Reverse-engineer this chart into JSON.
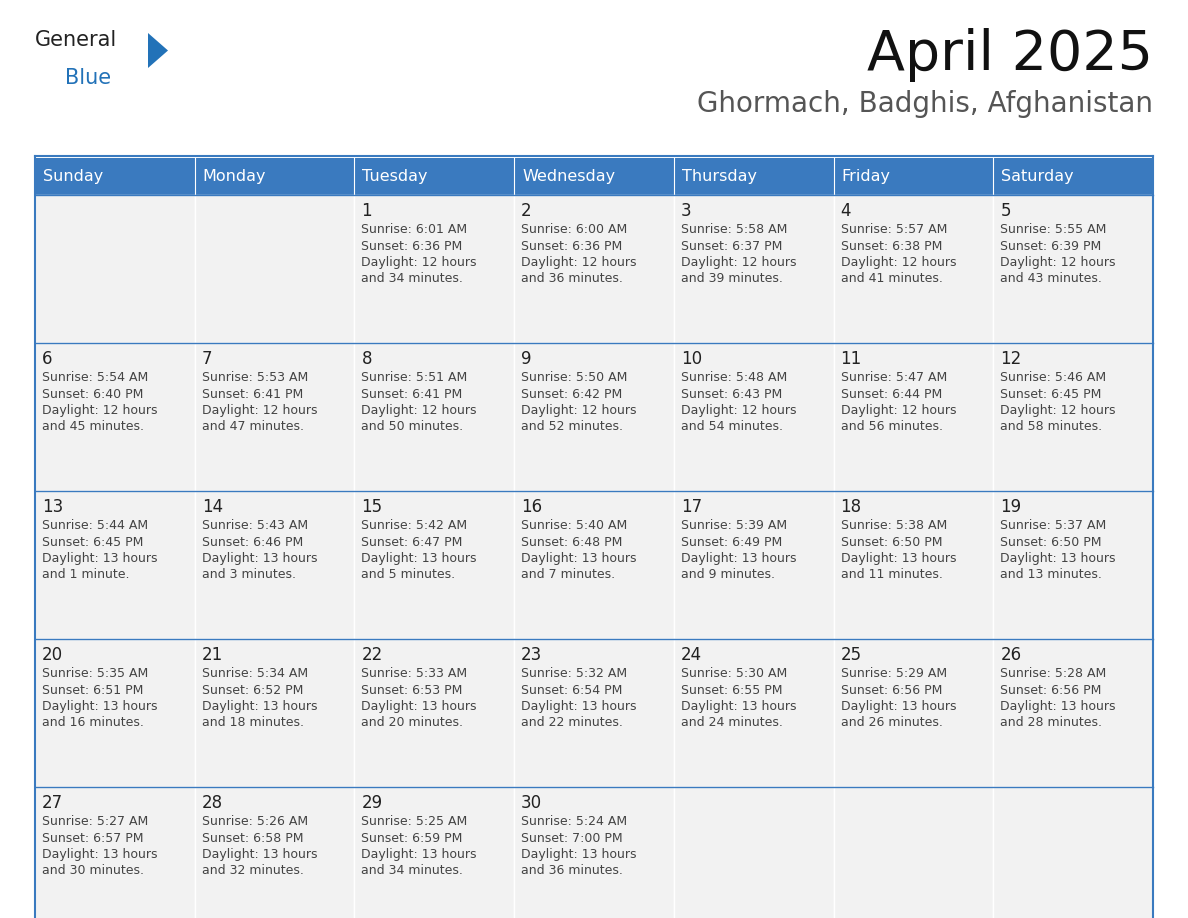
{
  "title": "April 2025",
  "subtitle": "Ghormach, Badghis, Afghanistan",
  "days_of_week": [
    "Sunday",
    "Monday",
    "Tuesday",
    "Wednesday",
    "Thursday",
    "Friday",
    "Saturday"
  ],
  "header_bg": "#3a7abf",
  "header_text": "#ffffff",
  "cell_bg": "#f2f2f2",
  "border_color": "#3a7abf",
  "cell_border_color": "#ffffff",
  "text_color": "#444444",
  "day_num_color": "#222222",
  "title_color": "#111111",
  "subtitle_color": "#555555",
  "logo_general_color": "#222222",
  "logo_blue_color": "#2272b8",
  "calendar_data": [
    [
      {
        "day": "",
        "info": ""
      },
      {
        "day": "",
        "info": ""
      },
      {
        "day": "1",
        "info": "Sunrise: 6:01 AM\nSunset: 6:36 PM\nDaylight: 12 hours\nand 34 minutes."
      },
      {
        "day": "2",
        "info": "Sunrise: 6:00 AM\nSunset: 6:36 PM\nDaylight: 12 hours\nand 36 minutes."
      },
      {
        "day": "3",
        "info": "Sunrise: 5:58 AM\nSunset: 6:37 PM\nDaylight: 12 hours\nand 39 minutes."
      },
      {
        "day": "4",
        "info": "Sunrise: 5:57 AM\nSunset: 6:38 PM\nDaylight: 12 hours\nand 41 minutes."
      },
      {
        "day": "5",
        "info": "Sunrise: 5:55 AM\nSunset: 6:39 PM\nDaylight: 12 hours\nand 43 minutes."
      }
    ],
    [
      {
        "day": "6",
        "info": "Sunrise: 5:54 AM\nSunset: 6:40 PM\nDaylight: 12 hours\nand 45 minutes."
      },
      {
        "day": "7",
        "info": "Sunrise: 5:53 AM\nSunset: 6:41 PM\nDaylight: 12 hours\nand 47 minutes."
      },
      {
        "day": "8",
        "info": "Sunrise: 5:51 AM\nSunset: 6:41 PM\nDaylight: 12 hours\nand 50 minutes."
      },
      {
        "day": "9",
        "info": "Sunrise: 5:50 AM\nSunset: 6:42 PM\nDaylight: 12 hours\nand 52 minutes."
      },
      {
        "day": "10",
        "info": "Sunrise: 5:48 AM\nSunset: 6:43 PM\nDaylight: 12 hours\nand 54 minutes."
      },
      {
        "day": "11",
        "info": "Sunrise: 5:47 AM\nSunset: 6:44 PM\nDaylight: 12 hours\nand 56 minutes."
      },
      {
        "day": "12",
        "info": "Sunrise: 5:46 AM\nSunset: 6:45 PM\nDaylight: 12 hours\nand 58 minutes."
      }
    ],
    [
      {
        "day": "13",
        "info": "Sunrise: 5:44 AM\nSunset: 6:45 PM\nDaylight: 13 hours\nand 1 minute."
      },
      {
        "day": "14",
        "info": "Sunrise: 5:43 AM\nSunset: 6:46 PM\nDaylight: 13 hours\nand 3 minutes."
      },
      {
        "day": "15",
        "info": "Sunrise: 5:42 AM\nSunset: 6:47 PM\nDaylight: 13 hours\nand 5 minutes."
      },
      {
        "day": "16",
        "info": "Sunrise: 5:40 AM\nSunset: 6:48 PM\nDaylight: 13 hours\nand 7 minutes."
      },
      {
        "day": "17",
        "info": "Sunrise: 5:39 AM\nSunset: 6:49 PM\nDaylight: 13 hours\nand 9 minutes."
      },
      {
        "day": "18",
        "info": "Sunrise: 5:38 AM\nSunset: 6:50 PM\nDaylight: 13 hours\nand 11 minutes."
      },
      {
        "day": "19",
        "info": "Sunrise: 5:37 AM\nSunset: 6:50 PM\nDaylight: 13 hours\nand 13 minutes."
      }
    ],
    [
      {
        "day": "20",
        "info": "Sunrise: 5:35 AM\nSunset: 6:51 PM\nDaylight: 13 hours\nand 16 minutes."
      },
      {
        "day": "21",
        "info": "Sunrise: 5:34 AM\nSunset: 6:52 PM\nDaylight: 13 hours\nand 18 minutes."
      },
      {
        "day": "22",
        "info": "Sunrise: 5:33 AM\nSunset: 6:53 PM\nDaylight: 13 hours\nand 20 minutes."
      },
      {
        "day": "23",
        "info": "Sunrise: 5:32 AM\nSunset: 6:54 PM\nDaylight: 13 hours\nand 22 minutes."
      },
      {
        "day": "24",
        "info": "Sunrise: 5:30 AM\nSunset: 6:55 PM\nDaylight: 13 hours\nand 24 minutes."
      },
      {
        "day": "25",
        "info": "Sunrise: 5:29 AM\nSunset: 6:56 PM\nDaylight: 13 hours\nand 26 minutes."
      },
      {
        "day": "26",
        "info": "Sunrise: 5:28 AM\nSunset: 6:56 PM\nDaylight: 13 hours\nand 28 minutes."
      }
    ],
    [
      {
        "day": "27",
        "info": "Sunrise: 5:27 AM\nSunset: 6:57 PM\nDaylight: 13 hours\nand 30 minutes."
      },
      {
        "day": "28",
        "info": "Sunrise: 5:26 AM\nSunset: 6:58 PM\nDaylight: 13 hours\nand 32 minutes."
      },
      {
        "day": "29",
        "info": "Sunrise: 5:25 AM\nSunset: 6:59 PM\nDaylight: 13 hours\nand 34 minutes."
      },
      {
        "day": "30",
        "info": "Sunrise: 5:24 AM\nSunset: 7:00 PM\nDaylight: 13 hours\nand 36 minutes."
      },
      {
        "day": "",
        "info": ""
      },
      {
        "day": "",
        "info": ""
      },
      {
        "day": "",
        "info": ""
      }
    ]
  ]
}
